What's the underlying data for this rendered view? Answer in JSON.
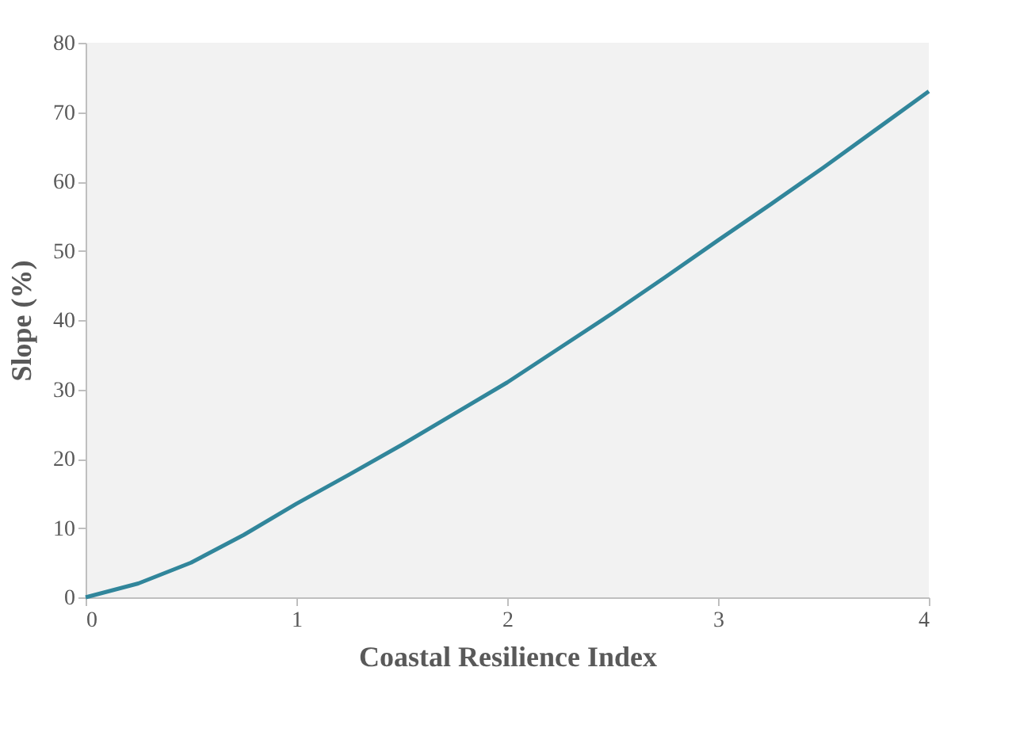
{
  "chart_data": {
    "type": "line",
    "xlabel": "Coastal Resilience Index",
    "ylabel": "Slope (%)",
    "x": [
      0,
      0.25,
      0.5,
      0.75,
      1,
      1.25,
      1.5,
      1.75,
      2,
      2.25,
      2.5,
      2.75,
      3,
      3.25,
      3.5,
      3.75,
      4
    ],
    "series": [
      {
        "color": "#31869b",
        "values": [
          0,
          2,
          5,
          9,
          13.5,
          17.7,
          22,
          26.5,
          31,
          36,
          41,
          46.2,
          51.5,
          56.7,
          62,
          67.5,
          73
        ]
      }
    ],
    "xlim": [
      0,
      4
    ],
    "ylim": [
      0,
      80
    ],
    "xticks": [
      0,
      1,
      2,
      3,
      4
    ],
    "yticks": [
      0,
      10,
      20,
      30,
      40,
      50,
      60,
      70,
      80
    ],
    "grid": false,
    "legend": false,
    "marker": "none",
    "line_style": "solid"
  }
}
